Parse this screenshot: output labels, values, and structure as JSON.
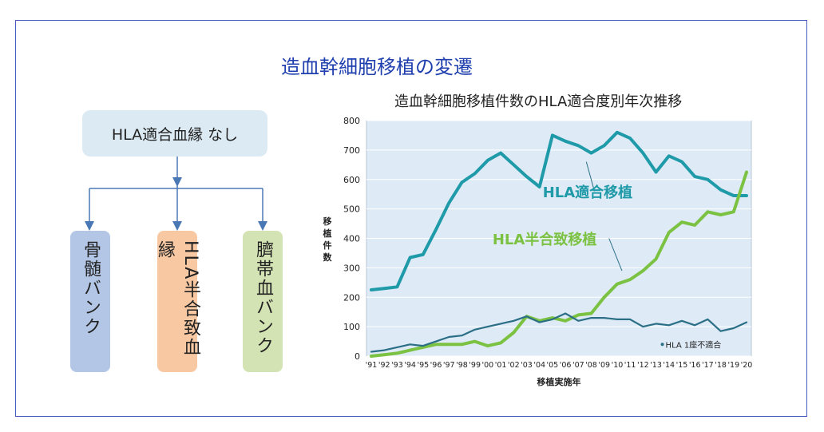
{
  "main_title": "造血幹細胞移植の変遷",
  "flow": {
    "top": "HLA適合血縁 なし",
    "boxes": [
      "骨髄バンク",
      "HLA半合致血縁",
      "臍帯血バンク"
    ],
    "box_colors": [
      "#b3c6e5",
      "#f8c8a3",
      "#d4e3b4"
    ]
  },
  "chart_data": {
    "type": "line",
    "title": "造血幹細胞移植件数のHLA適合度別年次推移",
    "xlabel": "移植実施年",
    "ylabel": "移植件数",
    "ylim": [
      0,
      800
    ],
    "yticks": [
      0,
      100,
      200,
      300,
      400,
      500,
      600,
      700,
      800
    ],
    "categories": [
      "'91",
      "'92",
      "'93",
      "'94",
      "'95",
      "'96",
      "'97",
      "'98",
      "'99",
      "'00",
      "'01",
      "'02",
      "'03",
      "'04",
      "'05",
      "'06",
      "'07",
      "'08",
      "'09",
      "'10",
      "'11",
      "'12",
      "'13",
      "'14",
      "'15",
      "'16",
      "'17",
      "'18",
      "'19",
      "'20"
    ],
    "grid": true,
    "series": [
      {
        "name": "HLA適合移植",
        "color": "#1f9aa8",
        "values": [
          225,
          230,
          235,
          335,
          345,
          430,
          520,
          590,
          620,
          665,
          690,
          650,
          610,
          575,
          750,
          730,
          715,
          690,
          715,
          760,
          740,
          690,
          625,
          680,
          660,
          610,
          600,
          565,
          545,
          545
        ]
      },
      {
        "name": "HLA半合致移植",
        "color": "#7cc242",
        "values": [
          0,
          5,
          10,
          20,
          30,
          40,
          40,
          40,
          50,
          35,
          45,
          80,
          135,
          120,
          130,
          120,
          140,
          145,
          200,
          245,
          260,
          290,
          330,
          420,
          455,
          445,
          490,
          480,
          490,
          625
        ]
      },
      {
        "name": "HLA 1座不適合",
        "color": "#2a6f86",
        "values": [
          15,
          20,
          30,
          40,
          35,
          50,
          65,
          70,
          90,
          100,
          110,
          120,
          135,
          115,
          125,
          145,
          120,
          130,
          130,
          125,
          125,
          100,
          110,
          105,
          120,
          105,
          125,
          85,
          95,
          115
        ]
      }
    ]
  }
}
